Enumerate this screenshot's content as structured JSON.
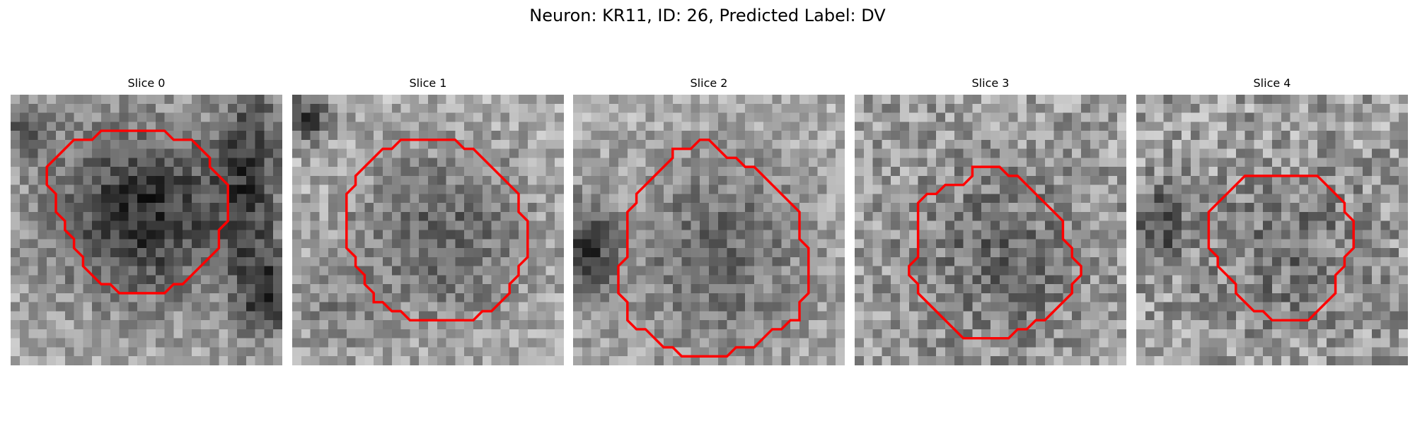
{
  "figure": {
    "title": "Neuron: KR11, ID: 26, Predicted Label: DV"
  },
  "colors": {
    "background": "#ffffff",
    "contour": "#ff0000"
  },
  "panels": [
    {
      "title": "Slice 0"
    },
    {
      "title": "Slice 1"
    },
    {
      "title": "Slice 2"
    },
    {
      "title": "Slice 3"
    },
    {
      "title": "Slice 4"
    }
  ]
}
